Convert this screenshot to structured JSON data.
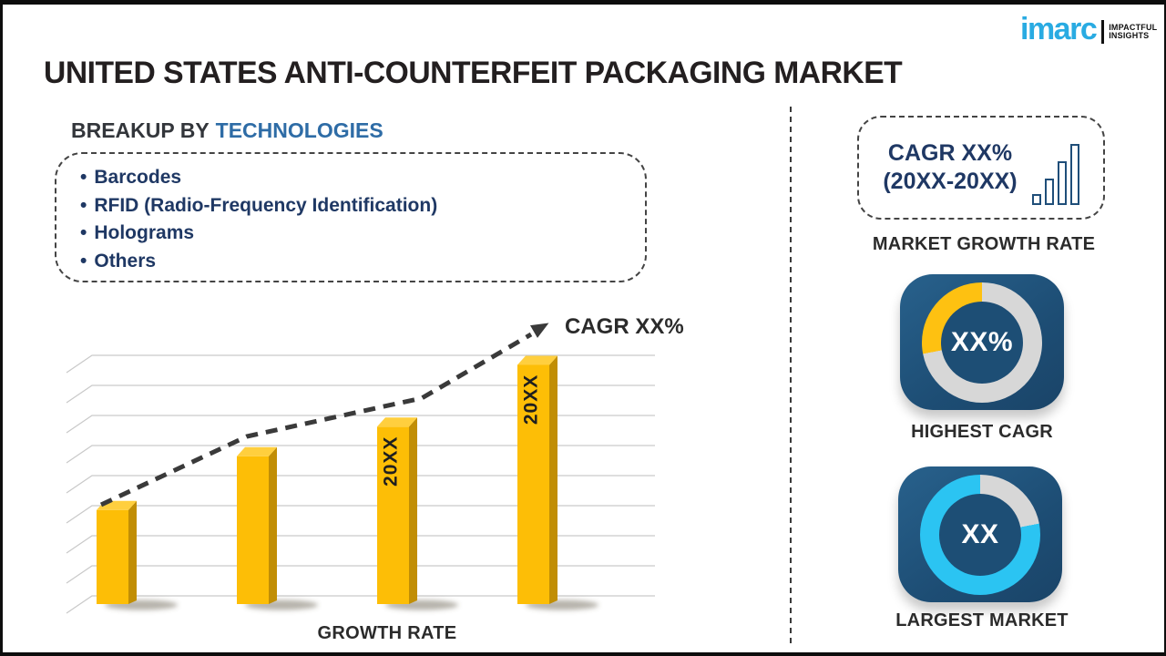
{
  "page": {
    "title": "UNITED STATES ANTI-COUNTERFEIT PACKAGING MARKET"
  },
  "logo": {
    "brand": "imarc",
    "brand_color": "#29ABE2",
    "tagline_line1": "IMPACTFUL",
    "tagline_line2": "INSIGHTS"
  },
  "breakup": {
    "heading_prefix": "BREAKUP BY",
    "heading_highlight": "TECHNOLOGIES",
    "heading_prefix_color": "#33363b",
    "heading_highlight_color": "#2E6CA6",
    "items": [
      "Barcodes",
      "RFID (Radio-Frequency Identification)",
      "Holograms",
      "Others"
    ]
  },
  "chart_data": [
    {
      "name": "growth_rate_bar_chart",
      "type": "bar",
      "categories": [
        "",
        "",
        "20XX",
        "20XX"
      ],
      "values": [
        35,
        55,
        66,
        89
      ],
      "values_note": "relative bar heights (est. % of plot height); no numeric axis shown",
      "xlabel": "GROWTH RATE",
      "ylabel": "",
      "trend_annotation": "CAGR XX%",
      "has_dashed_trend_arrow": true,
      "grid": true,
      "legend": false,
      "bar_colors": {
        "front": "#FDBE06",
        "side": "#C18E05",
        "top": "#FFCF3E"
      }
    },
    {
      "name": "highest_cagr_donut",
      "type": "pie",
      "center_label": "XX%",
      "slices": [
        {
          "label": "highlight",
          "percent": 28,
          "color": "#FEC111"
        },
        {
          "label": "remainder",
          "percent": 72,
          "color": "#D7D7D7"
        }
      ]
    },
    {
      "name": "largest_market_donut",
      "type": "pie",
      "center_label": "XX",
      "slices": [
        {
          "label": "highlight",
          "percent": 78,
          "color": "#2BC4F2"
        },
        {
          "label": "remainder",
          "percent": 22,
          "color": "#D7D7D7"
        }
      ]
    }
  ],
  "right_panel": {
    "growth_box": {
      "line1": "CAGR XX%",
      "line2": "(20XX-20XX)",
      "label": "MARKET GROWTH RATE"
    },
    "highest_cagr": {
      "label": "HIGHEST CAGR"
    },
    "largest_market": {
      "label": "LARGEST MARKET"
    }
  }
}
